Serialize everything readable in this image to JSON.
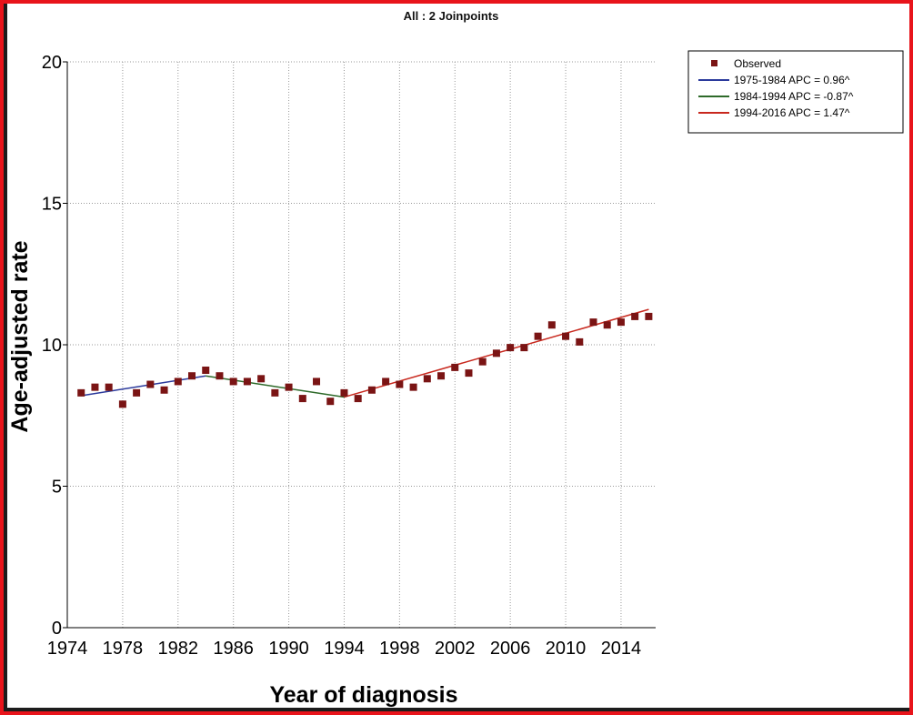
{
  "chart_data": {
    "type": "scatter",
    "title": "All : 2 Joinpoints",
    "xlabel": "Year of diagnosis",
    "ylabel": "Age-adjusted rate",
    "xlim": [
      1974,
      2016.5
    ],
    "ylim": [
      0,
      20
    ],
    "x_ticks": [
      1974,
      1978,
      1982,
      1986,
      1990,
      1994,
      1998,
      2002,
      2006,
      2010,
      2014
    ],
    "x_tick_labels": [
      "1974",
      "1978",
      "1982",
      "1986",
      "1990",
      "1994",
      "1998",
      "2002",
      "2006",
      "2010",
      "2014"
    ],
    "y_ticks": [
      0,
      5,
      10,
      15,
      20
    ],
    "y_tick_labels": [
      "0",
      "5",
      "10",
      "15",
      "20"
    ],
    "grid": true,
    "legend_position": "top-right",
    "series": [
      {
        "name": "Observed",
        "kind": "points",
        "color": "#7a1414",
        "x": [
          1975,
          1976,
          1977,
          1978,
          1979,
          1980,
          1981,
          1982,
          1983,
          1984,
          1985,
          1986,
          1987,
          1988,
          1989,
          1990,
          1991,
          1992,
          1993,
          1994,
          1995,
          1996,
          1997,
          1998,
          1999,
          2000,
          2001,
          2002,
          2003,
          2004,
          2005,
          2006,
          2007,
          2008,
          2009,
          2010,
          2011,
          2012,
          2013,
          2014,
          2015,
          2016
        ],
        "y": [
          8.3,
          8.5,
          8.5,
          7.9,
          8.3,
          8.6,
          8.4,
          8.7,
          8.9,
          9.1,
          8.9,
          8.7,
          8.7,
          8.8,
          8.3,
          8.5,
          8.1,
          8.7,
          8.0,
          8.3,
          8.1,
          8.4,
          8.7,
          8.6,
          8.5,
          8.8,
          8.9,
          9.2,
          9.0,
          9.4,
          9.7,
          9.9,
          9.9,
          10.3,
          10.7,
          10.3,
          10.1,
          10.8,
          10.7,
          10.8,
          11.0,
          11.0
        ]
      },
      {
        "name": "1975-1984 APC  = 0.96^",
        "kind": "line",
        "color": "#2b3a9c",
        "x": [
          1975,
          1984
        ],
        "y": [
          8.2,
          8.9
        ]
      },
      {
        "name": "1984-1994 APC  = -0.87^",
        "kind": "line",
        "color": "#2e6a2a",
        "x": [
          1984,
          1994
        ],
        "y": [
          8.9,
          8.15
        ]
      },
      {
        "name": "1994-2016 APC  = 1.47^",
        "kind": "line",
        "color": "#c8281e",
        "x": [
          1994,
          2016
        ],
        "y": [
          8.15,
          11.25
        ]
      }
    ]
  }
}
